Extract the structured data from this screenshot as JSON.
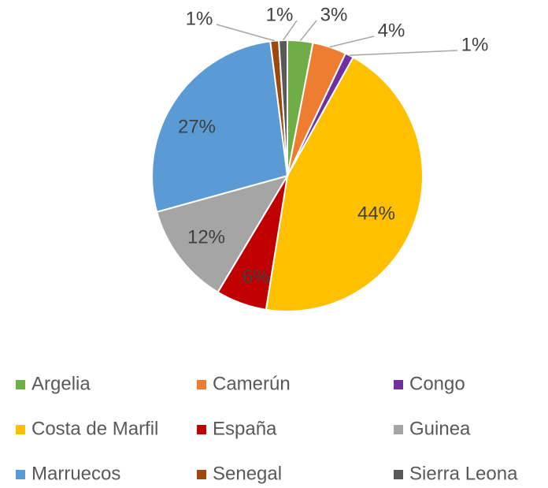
{
  "chart_data": {
    "type": "pie",
    "categories": [
      "Argelia",
      "Camerún",
      "Congo",
      "Costa de Marfil",
      "España",
      "Guinea",
      "Marruecos",
      "Senegal",
      "Sierra Leona"
    ],
    "values": [
      3,
      4,
      1,
      44,
      6,
      12,
      27,
      1,
      1
    ],
    "value_labels": [
      "3%",
      "4%",
      "1%",
      "44%",
      "6%",
      "12%",
      "27%",
      "1%",
      "1%"
    ],
    "colors": [
      "#70ad47",
      "#ed7d31",
      "#7030a0",
      "#ffc000",
      "#c00000",
      "#a5a5a5",
      "#5b9bd5",
      "#9e480e",
      "#595959"
    ],
    "legend": "bottom"
  }
}
